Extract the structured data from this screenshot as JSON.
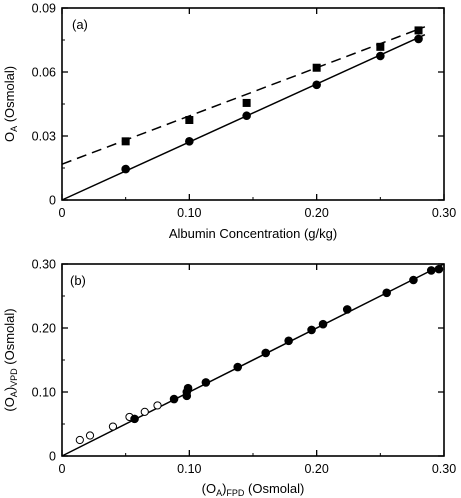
{
  "chart_data": [
    {
      "type": "scatter",
      "panel_label": "(a)",
      "xlabel": "Albumin Concentration  (g/kg)",
      "ylabel_main": "O",
      "ylabel_sub": "A",
      "ylabel_rest": "  (Osmolal)",
      "xlim": [
        0,
        0.3
      ],
      "ylim": [
        0,
        0.09
      ],
      "xticks": [
        0,
        0.1,
        0.2,
        0.3
      ],
      "xtick_labels": [
        "0",
        "0.10",
        "0.20",
        "0.30"
      ],
      "yticks": [
        0,
        0.03,
        0.06,
        0.09
      ],
      "ytick_labels": [
        "0",
        "0.03",
        "0.06",
        "0.09"
      ],
      "grid": false,
      "series": [
        {
          "marker": "square",
          "color": "#000000",
          "x": [
            0.05,
            0.1,
            0.145,
            0.2,
            0.25,
            0.28
          ],
          "y": [
            0.0275,
            0.0375,
            0.0455,
            0.062,
            0.0718,
            0.0795
          ]
        },
        {
          "marker": "circle-filled",
          "color": "#000000",
          "x": [
            0.05,
            0.1,
            0.145,
            0.2,
            0.25,
            0.28
          ],
          "y": [
            0.0145,
            0.0275,
            0.0395,
            0.054,
            0.0675,
            0.0755
          ]
        }
      ],
      "lines": [
        {
          "style": "dashed",
          "x": [
            0,
            0.285
          ],
          "y": [
            0.0168,
            0.0812
          ]
        },
        {
          "style": "solid",
          "x": [
            0,
            0.285
          ],
          "y": [
            0,
            0.0775
          ]
        }
      ]
    },
    {
      "type": "scatter",
      "panel_label": "(b)",
      "xlabel_main": "(O",
      "xlabel_sub": "A",
      "xlabel_rest": ")",
      "xlabel_sub2": "FPD",
      "xlabel_tail": "  (Osmolal)",
      "ylabel_main": "(O",
      "ylabel_sub": "A",
      "ylabel_rest": ")",
      "ylabel_sub2": "VPD",
      "ylabel_tail": "  (Osmolal)",
      "xlim": [
        0,
        0.3
      ],
      "ylim": [
        0,
        0.3
      ],
      "xticks": [
        0,
        0.1,
        0.2,
        0.3
      ],
      "xtick_labels": [
        "0",
        "0.10",
        "0.20",
        "0.30"
      ],
      "yticks": [
        0,
        0.1,
        0.2,
        0.3
      ],
      "ytick_labels": [
        "0",
        "0.10",
        "0.20",
        "0.30"
      ],
      "grid": false,
      "series": [
        {
          "marker": "circle-open",
          "color": "#000000",
          "x": [
            0.014,
            0.022,
            0.04,
            0.053,
            0.065,
            0.075
          ],
          "y": [
            0.025,
            0.032,
            0.046,
            0.061,
            0.069,
            0.079
          ]
        },
        {
          "marker": "circle-filled",
          "color": "#000000",
          "x": [
            0.057,
            0.088,
            0.098,
            0.098,
            0.099,
            0.113,
            0.138,
            0.16,
            0.178,
            0.196,
            0.205,
            0.224,
            0.255,
            0.276,
            0.29,
            0.296
          ],
          "y": [
            0.058,
            0.089,
            0.094,
            0.1,
            0.106,
            0.115,
            0.139,
            0.161,
            0.18,
            0.197,
            0.206,
            0.229,
            0.255,
            0.275,
            0.29,
            0.292
          ]
        }
      ],
      "lines": [
        {
          "style": "solid",
          "x": [
            0,
            0.3
          ],
          "y": [
            0,
            0.3
          ]
        }
      ]
    }
  ]
}
